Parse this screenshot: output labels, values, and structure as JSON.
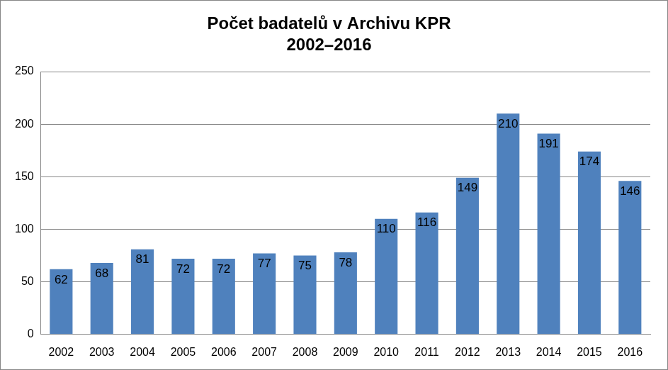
{
  "chart_data": {
    "type": "bar",
    "title": [
      "Počet badatelů v Archivu KPR",
      "2002–2016"
    ],
    "categories": [
      "2002",
      "2003",
      "2004",
      "2005",
      "2006",
      "2007",
      "2008",
      "2009",
      "2010",
      "2011",
      "2012",
      "2013",
      "2014",
      "2015",
      "2016"
    ],
    "values": [
      62,
      68,
      81,
      72,
      72,
      77,
      75,
      78,
      110,
      116,
      149,
      210,
      191,
      174,
      146
    ],
    "color": "#4f81bd",
    "ylim": [
      0,
      250
    ],
    "yticks": [
      0,
      50,
      100,
      150,
      200,
      250
    ],
    "grid": true,
    "data_labels": true
  }
}
